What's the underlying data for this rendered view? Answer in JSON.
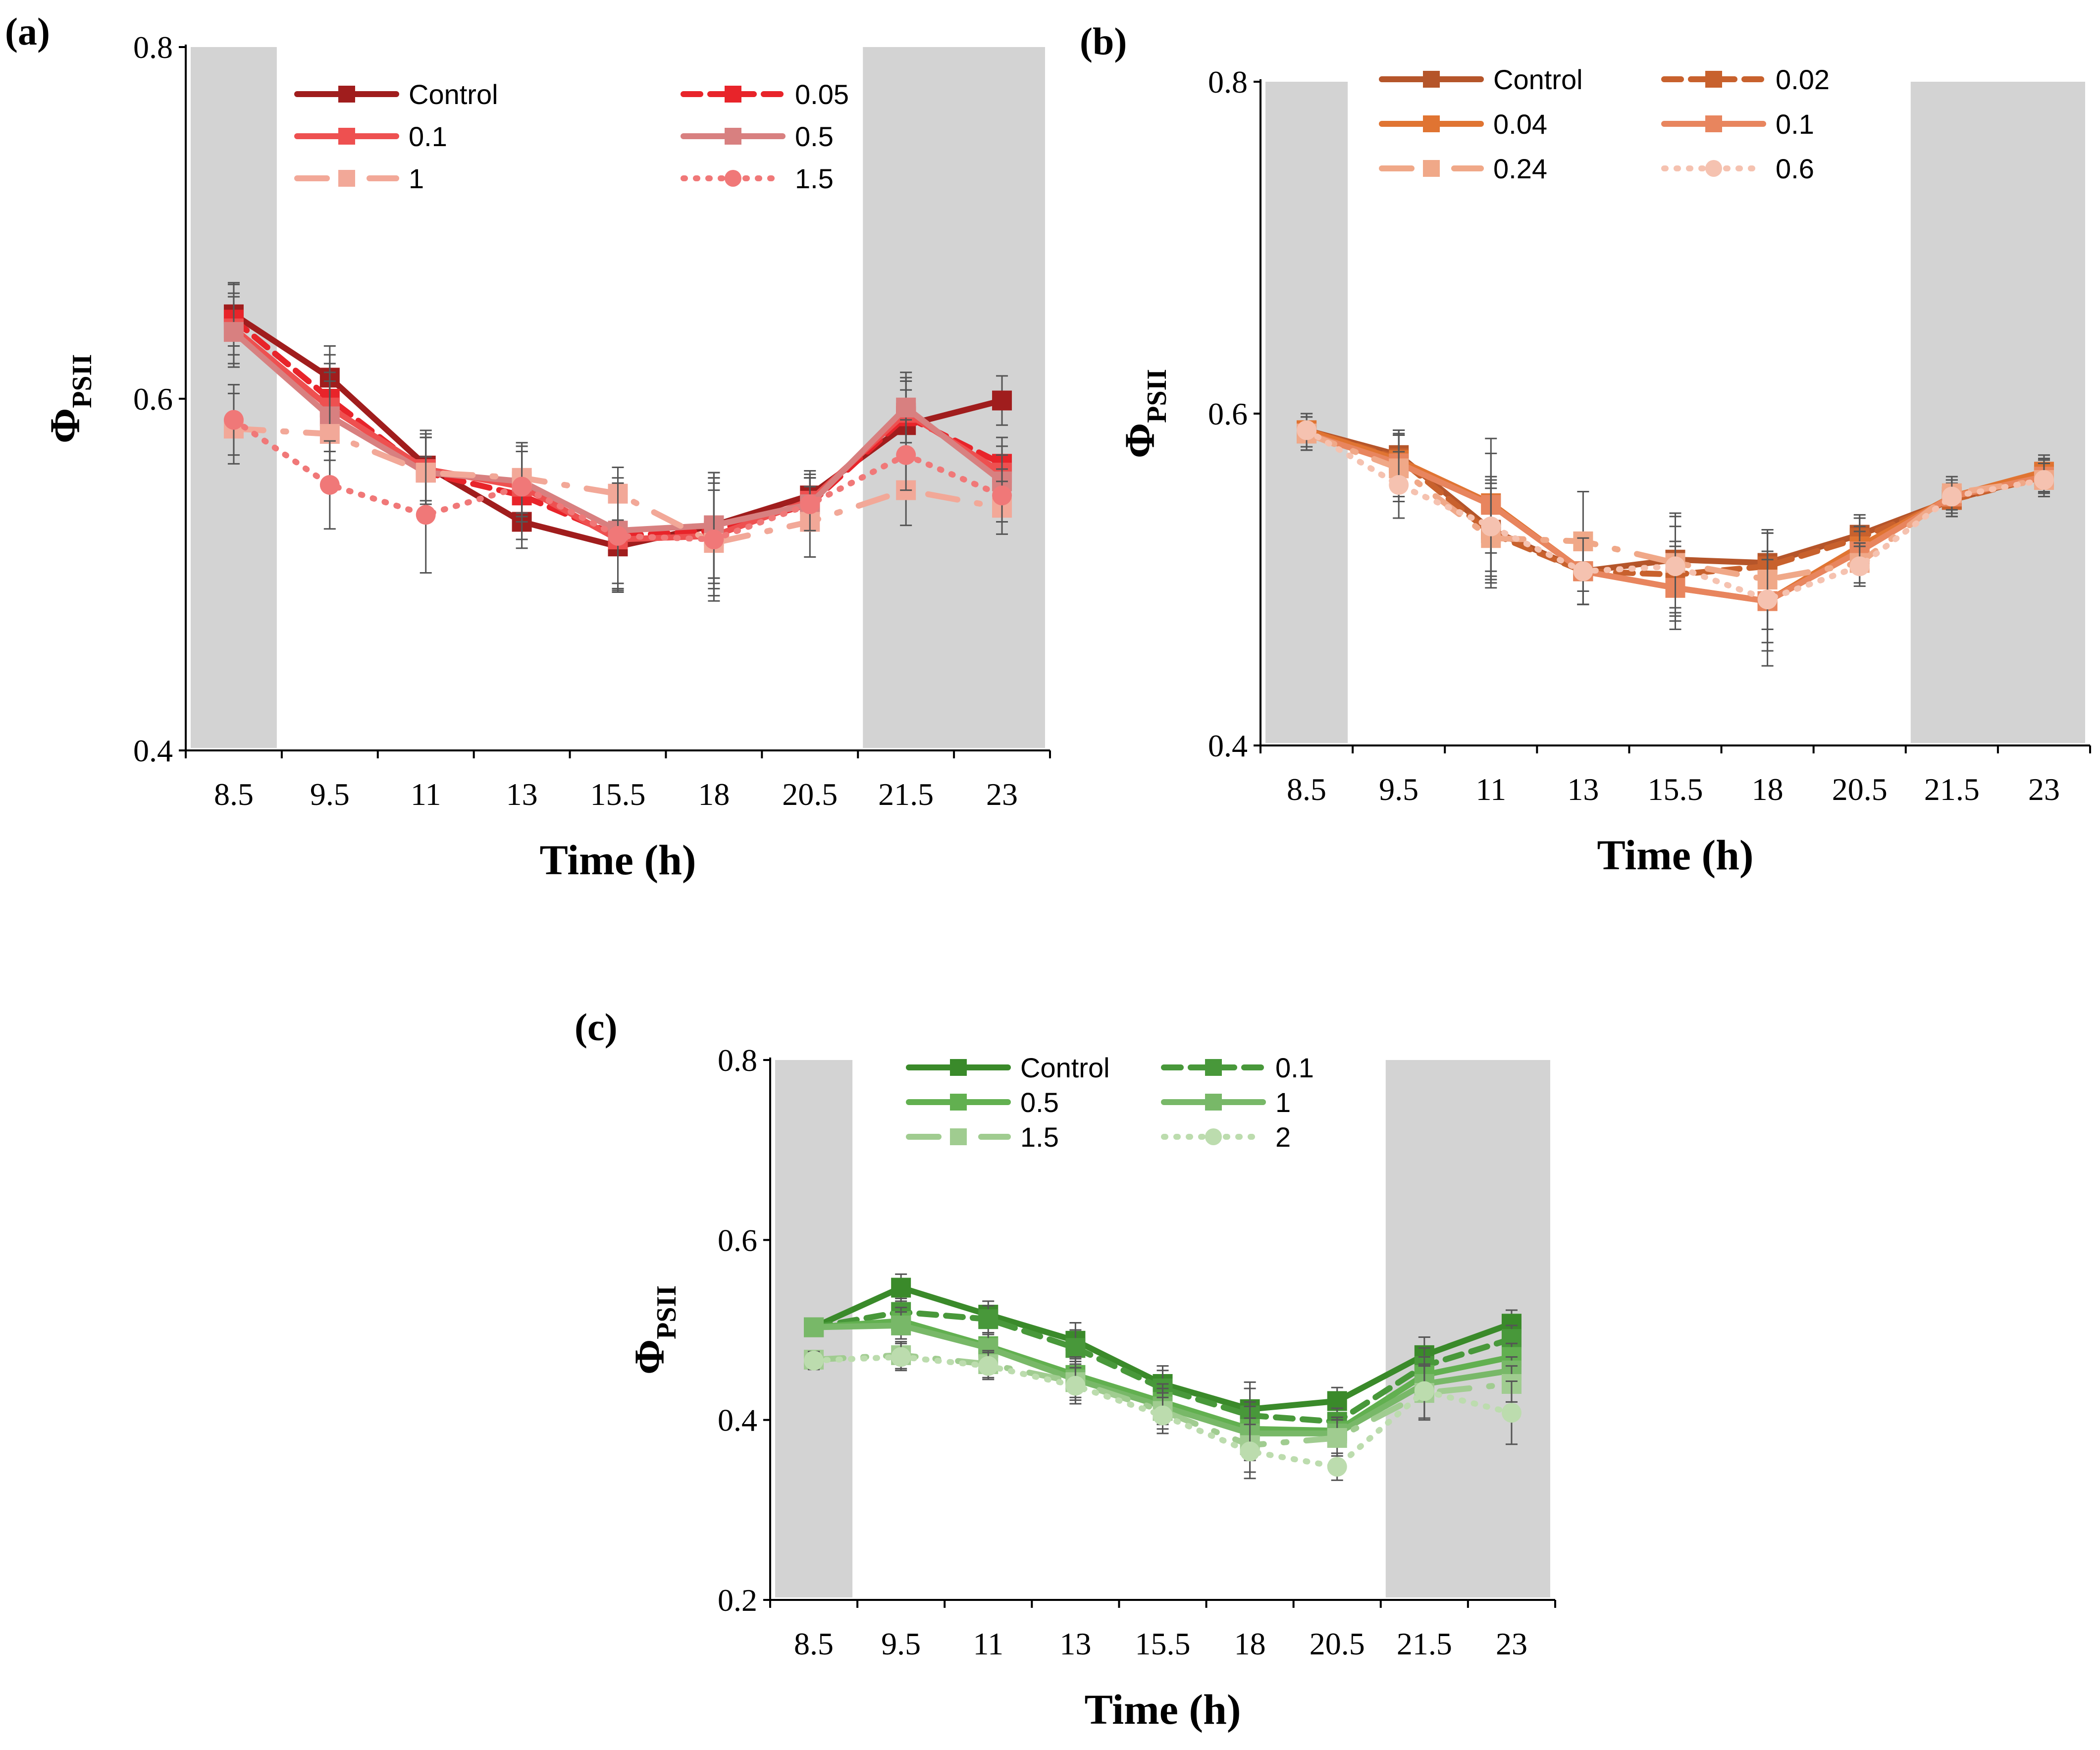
{
  "chart_data": [
    {
      "id": "a",
      "type": "line",
      "panel_label": "(a)",
      "xlabel": "Time (h)",
      "ylabel": {
        "main": "Φ",
        "sub": "PSII"
      },
      "ylim": [
        0.4,
        0.8
      ],
      "yticks": [
        "0.4",
        "0.6",
        "0.8"
      ],
      "categories": [
        "8.5",
        "9.5",
        "11",
        "13",
        "15.5",
        "18",
        "20.5",
        "21.5",
        "23"
      ],
      "dark_periods": [
        [
          0,
          0
        ],
        [
          7,
          8
        ]
      ],
      "legend_columns": 2,
      "series": [
        {
          "name": "Control",
          "color": "#a01d1d",
          "dash": "solid",
          "marker": "square",
          "values": [
            0.648,
            0.612,
            0.562,
            0.53,
            0.516,
            0.528,
            0.545,
            0.585,
            0.599
          ],
          "errors": [
            0.018,
            0.018,
            0.02,
            0.015,
            0.025,
            0.03,
            0.014,
            0.02,
            0.014
          ]
        },
        {
          "name": "0.05",
          "color": "#e8242a",
          "dash": "dashed",
          "marker": "square",
          "values": [
            0.645,
            0.6,
            0.558,
            0.545,
            0.522,
            0.525,
            0.54,
            0.59,
            0.563
          ],
          "errors": [
            0.02,
            0.025,
            0.02,
            0.025,
            0.03,
            0.03,
            0.015,
            0.02,
            0.015
          ]
        },
        {
          "name": "0.1",
          "color": "#ee5050",
          "dash": "solid",
          "marker": "square",
          "values": [
            0.64,
            0.595,
            0.56,
            0.55,
            0.52,
            0.522,
            0.542,
            0.592,
            0.558
          ],
          "errors": [
            0.02,
            0.025,
            0.02,
            0.02,
            0.03,
            0.03,
            0.015,
            0.02,
            0.015
          ]
        },
        {
          "name": "0.5",
          "color": "#d88080",
          "dash": "solid",
          "marker": "square",
          "values": [
            0.638,
            0.59,
            0.558,
            0.553,
            0.525,
            0.528,
            0.54,
            0.595,
            0.553
          ],
          "errors": [
            0.02,
            0.025,
            0.02,
            0.02,
            0.03,
            0.03,
            0.015,
            0.02,
            0.015
          ]
        },
        {
          "name": "1",
          "color": "#f2a898",
          "dash": "dashdot",
          "marker": "square",
          "values": [
            0.583,
            0.58,
            0.558,
            0.555,
            0.546,
            0.518,
            0.53,
            0.548,
            0.538
          ],
          "errors": [
            0.02,
            0.03,
            0.02,
            0.02,
            0.015,
            0.03,
            0.02,
            0.02,
            0.015
          ]
        },
        {
          "name": "1.5",
          "color": "#f07878",
          "dash": "dotted",
          "marker": "circle",
          "values": [
            0.588,
            0.551,
            0.534,
            0.55,
            0.522,
            0.52,
            0.54,
            0.568,
            0.545
          ],
          "errors": [
            0.02,
            0.025,
            0.033,
            0.02,
            0.03,
            0.035,
            0.015,
            0.02,
            0.015
          ]
        }
      ]
    },
    {
      "id": "b",
      "type": "line",
      "panel_label": "(b)",
      "xlabel": "Time (h)",
      "ylabel": {
        "main": "Φ",
        "sub": "PSII"
      },
      "ylim": [
        0.4,
        0.8
      ],
      "yticks": [
        "0.4",
        "0.6",
        "0.8"
      ],
      "categories": [
        "8.5",
        "9.5",
        "11",
        "13",
        "15.5",
        "18",
        "20.5",
        "21.5",
        "23"
      ],
      "dark_periods": [
        [
          0,
          0
        ],
        [
          7,
          8
        ]
      ],
      "legend_columns": 2,
      "series": [
        {
          "name": "Control",
          "color": "#b5552a",
          "dash": "solid",
          "marker": "square",
          "values": [
            0.59,
            0.575,
            0.53,
            0.505,
            0.512,
            0.51,
            0.527,
            0.548,
            0.563
          ],
          "errors": [
            0.01,
            0.015,
            0.03,
            0.02,
            0.02,
            0.02,
            0.012,
            0.01,
            0.01
          ]
        },
        {
          "name": "0.02",
          "color": "#c8612d",
          "dash": "dashed",
          "marker": "square",
          "values": [
            0.59,
            0.573,
            0.528,
            0.505,
            0.503,
            0.508,
            0.525,
            0.548,
            0.562
          ],
          "errors": [
            0.01,
            0.015,
            0.03,
            0.02,
            0.02,
            0.02,
            0.012,
            0.01,
            0.01
          ]
        },
        {
          "name": "0.04",
          "color": "#e07432",
          "dash": "solid",
          "marker": "square",
          "values": [
            0.59,
            0.572,
            0.546,
            0.505,
            0.495,
            0.487,
            0.52,
            0.55,
            0.565
          ],
          "errors": [
            0.01,
            0.015,
            0.03,
            0.02,
            0.02,
            0.025,
            0.012,
            0.01,
            0.01
          ]
        },
        {
          "name": "0.1",
          "color": "#e8855e",
          "dash": "solid",
          "marker": "square",
          "values": [
            0.588,
            0.57,
            0.545,
            0.505,
            0.495,
            0.487,
            0.517,
            0.55,
            0.562
          ],
          "errors": [
            0.01,
            0.02,
            0.04,
            0.02,
            0.025,
            0.03,
            0.012,
            0.01,
            0.01
          ]
        },
        {
          "name": "0.24",
          "color": "#f0a888",
          "dash": "dashdot",
          "marker": "square",
          "values": [
            0.588,
            0.567,
            0.525,
            0.523,
            0.51,
            0.5,
            0.51,
            0.552,
            0.56
          ],
          "errors": [
            0.01,
            0.02,
            0.03,
            0.03,
            0.03,
            0.03,
            0.012,
            0.01,
            0.01
          ]
        },
        {
          "name": "0.6",
          "color": "#f5c2b0",
          "dash": "dotted",
          "marker": "circle",
          "values": [
            0.59,
            0.557,
            0.532,
            0.505,
            0.508,
            0.488,
            0.508,
            0.55,
            0.56
          ],
          "errors": [
            0.01,
            0.02,
            0.03,
            0.02,
            0.03,
            0.04,
            0.012,
            0.01,
            0.01
          ]
        }
      ]
    },
    {
      "id": "c",
      "type": "line",
      "panel_label": "(c)",
      "xlabel": "Time (h)",
      "ylabel": {
        "main": "Φ",
        "sub": "PSII"
      },
      "ylim": [
        0.2,
        0.8
      ],
      "yticks": [
        "0.2",
        "0.4",
        "0.6",
        "0.8"
      ],
      "categories": [
        "8.5",
        "9.5",
        "11",
        "13",
        "15.5",
        "18",
        "20.5",
        "21.5",
        "23"
      ],
      "dark_periods": [
        [
          0,
          0
        ],
        [
          7,
          8
        ]
      ],
      "legend_columns": 2,
      "series": [
        {
          "name": "Control",
          "color": "#3a8a2a",
          "dash": "solid",
          "marker": "square",
          "values": [
            0.503,
            0.547,
            0.517,
            0.488,
            0.44,
            0.412,
            0.421,
            0.472,
            0.507
          ],
          "errors": [
            0.01,
            0.015,
            0.015,
            0.02,
            0.02,
            0.03,
            0.015,
            0.02,
            0.015
          ]
        },
        {
          "name": "0.1",
          "color": "#48983a",
          "dash": "dashed",
          "marker": "square",
          "values": [
            0.503,
            0.52,
            0.512,
            0.48,
            0.435,
            0.405,
            0.398,
            0.46,
            0.49
          ],
          "errors": [
            0.01,
            0.015,
            0.015,
            0.02,
            0.02,
            0.03,
            0.015,
            0.02,
            0.015
          ]
        },
        {
          "name": "0.5",
          "color": "#62b050",
          "dash": "solid",
          "marker": "square",
          "values": [
            0.503,
            0.51,
            0.482,
            0.45,
            0.42,
            0.39,
            0.388,
            0.45,
            0.47
          ],
          "errors": [
            0.01,
            0.015,
            0.015,
            0.02,
            0.02,
            0.03,
            0.015,
            0.02,
            0.015
          ]
        },
        {
          "name": "1",
          "color": "#78b868",
          "dash": "solid",
          "marker": "square",
          "values": [
            0.503,
            0.505,
            0.48,
            0.445,
            0.415,
            0.385,
            0.385,
            0.44,
            0.455
          ],
          "errors": [
            0.01,
            0.015,
            0.015,
            0.02,
            0.02,
            0.03,
            0.015,
            0.02,
            0.015
          ]
        },
        {
          "name": "1.5",
          "color": "#a0cc90",
          "dash": "dashdot",
          "marker": "square",
          "values": [
            0.467,
            0.472,
            0.462,
            0.442,
            0.41,
            0.372,
            0.38,
            0.43,
            0.44
          ],
          "errors": [
            0.01,
            0.015,
            0.015,
            0.02,
            0.02,
            0.03,
            0.02,
            0.03,
            0.02
          ]
        },
        {
          "name": "2",
          "color": "#bcdcae",
          "dash": "dotted",
          "marker": "circle",
          "values": [
            0.466,
            0.47,
            0.46,
            0.438,
            0.405,
            0.365,
            0.348,
            0.432,
            0.408
          ],
          "errors": [
            0.01,
            0.015,
            0.015,
            0.02,
            0.02,
            0.03,
            0.015,
            0.03,
            0.035
          ]
        }
      ]
    }
  ]
}
